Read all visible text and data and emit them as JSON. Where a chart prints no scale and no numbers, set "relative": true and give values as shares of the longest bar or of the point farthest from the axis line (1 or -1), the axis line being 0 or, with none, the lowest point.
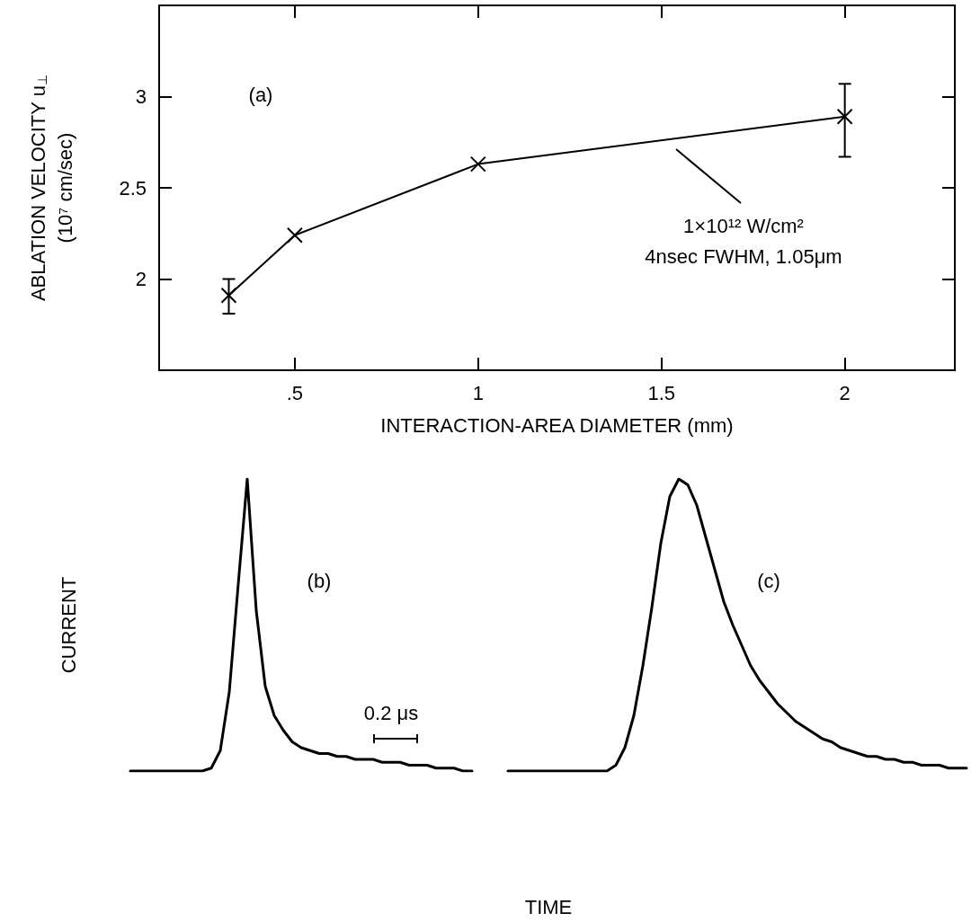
{
  "chart_data": [
    {
      "type": "line",
      "xlabel": "INTERACTION-AREA DIAMETER (mm)",
      "ylabel": "ABLATION VELOCITY u$_{⊥}$\n(10⁷ cm/sec)",
      "x": [
        0.32,
        0.5,
        1,
        2
      ],
      "values": [
        1.91,
        2.24,
        2.63,
        2.89
      ],
      "errors": [
        [
          1.81,
          2.0
        ],
        null,
        null,
        [
          2.67,
          3.07
        ]
      ],
      "color": "#000000",
      "marker": "cross",
      "xlim": [
        0.13,
        2.3
      ],
      "ylim": [
        1.5,
        3.5
      ],
      "xticks": [
        {
          "value": 0.5,
          "label": ".5"
        },
        1,
        1.5,
        2
      ],
      "yticks": [
        2,
        2.5,
        3
      ],
      "annotations": [
        "(a)",
        "1×10¹² W/cm²\n4nsec FWHM, 1.05μm"
      ]
    },
    {
      "type": "line",
      "relative": true,
      "marker": "none",
      "xlabel": "TIME",
      "ylabel": "CURRENT",
      "categories": [
        null,
        null,
        null,
        null,
        null,
        null,
        null,
        null,
        null,
        null,
        null,
        null,
        null,
        null,
        null,
        null,
        null,
        null,
        null,
        null,
        null,
        null,
        null,
        null,
        null,
        null,
        null,
        null,
        null,
        null,
        null,
        null,
        null,
        null,
        null,
        null,
        null,
        null,
        null,
        null,
        null,
        null,
        null,
        null,
        null,
        null,
        null,
        null,
        null,
        null,
        null,
        null,
        null,
        null,
        null,
        null,
        null,
        null,
        null,
        null,
        null,
        null,
        null,
        null,
        null,
        null,
        null,
        null,
        null,
        null,
        null,
        null,
        null,
        null,
        null,
        null,
        null,
        null,
        null,
        null,
        null,
        null,
        null,
        null,
        null,
        null,
        null,
        null,
        null,
        null,
        null,
        null,
        null,
        null
      ],
      "series": [
        {
          "color": "#000000",
          "values": [
            0,
            0,
            0,
            0,
            0,
            0,
            0,
            0,
            0,
            0.01,
            0.07,
            0.27,
            0.64,
            1,
            0.55,
            0.29,
            0.19,
            0.14,
            0.1,
            0.08,
            0.07,
            0.06,
            0.06,
            0.05,
            0.05,
            0.04,
            0.04,
            0.04,
            0.03,
            0.03,
            0.03,
            0.02,
            0.02,
            0.02,
            0.01,
            0.01,
            0.01,
            0,
            0,
            null,
            null,
            null,
            null,
            null,
            null,
            null,
            null,
            null,
            null,
            null,
            null,
            null,
            null,
            null,
            null,
            null,
            null,
            null,
            null,
            null,
            null,
            null,
            null,
            null,
            null,
            null,
            null,
            null,
            null,
            null,
            null,
            null,
            null,
            null,
            null,
            null,
            null,
            null,
            null,
            null,
            null,
            null,
            null,
            null,
            null,
            null,
            null,
            null,
            null,
            null,
            null,
            null,
            null,
            null
          ]
        },
        {
          "color": "#000000",
          "values": [
            null,
            null,
            null,
            null,
            null,
            null,
            null,
            null,
            null,
            null,
            null,
            null,
            null,
            null,
            null,
            null,
            null,
            null,
            null,
            null,
            null,
            null,
            null,
            null,
            null,
            null,
            null,
            null,
            null,
            null,
            null,
            null,
            null,
            null,
            null,
            null,
            null,
            null,
            null,
            null,
            null,
            null,
            0,
            0,
            0,
            0,
            0,
            0,
            0,
            0,
            0,
            0,
            0,
            0,
            0.02,
            0.08,
            0.19,
            0.36,
            0.56,
            0.78,
            0.94,
            1,
            0.98,
            0.91,
            0.8,
            0.69,
            0.58,
            0.5,
            0.43,
            0.36,
            0.31,
            0.27,
            0.23,
            0.2,
            0.17,
            0.15,
            0.13,
            0.11,
            0.1,
            0.08,
            0.07,
            0.06,
            0.05,
            0.05,
            0.04,
            0.04,
            0.03,
            0.03,
            0.02,
            0.02,
            0.02,
            0.01,
            0.01,
            0.01
          ]
        }
      ],
      "annotations": [
        "(b)",
        "(c)",
        "0.2 μs"
      ]
    }
  ]
}
